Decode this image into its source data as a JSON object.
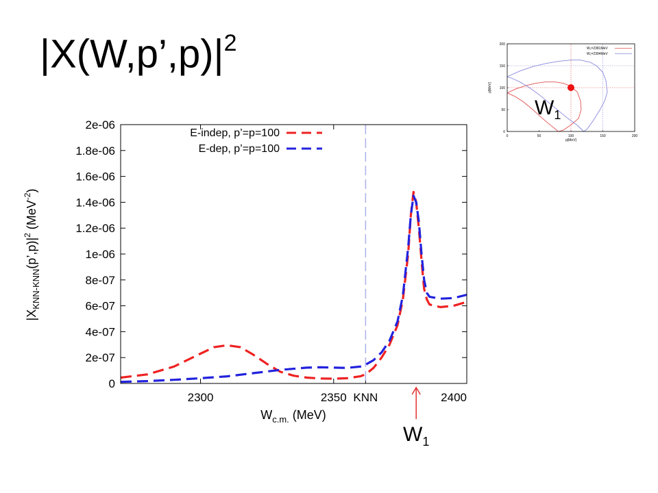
{
  "slide": {
    "title_main": "|X(W,p’,p)|",
    "title_sup": "2",
    "marker_label_main": "W",
    "marker_label_sub": "1"
  },
  "chart_data": [
    {
      "type": "line",
      "xlabel_main": "W",
      "xlabel_sub": "c.m.",
      "xlabel_tail": " (MeV)",
      "ylabel_main": "|X",
      "ylabel_sub": "KNN-KNN",
      "ylabel_tail": "(p’,p)|",
      "ylabel_sup_2": "2",
      "ylabel_unit": " (MeV",
      "ylabel_unit_sup": "-2",
      "ylabel_close": ")",
      "xlim": [
        2270,
        2400
      ],
      "ylim": [
        0,
        2e-06
      ],
      "x_ticks": [
        {
          "value": 2300,
          "label": "2300"
        },
        {
          "value": 2350,
          "label": "2350"
        },
        {
          "value": 2362,
          "label": "KNN"
        },
        {
          "value": 2400,
          "label": "2400"
        }
      ],
      "y_ticks": [
        {
          "value": 0,
          "label": "0"
        },
        {
          "value": 2e-07,
          "label": "2e-07"
        },
        {
          "value": 4e-07,
          "label": "4e-07"
        },
        {
          "value": 6e-07,
          "label": "6e-07"
        },
        {
          "value": 8e-07,
          "label": "8e-07"
        },
        {
          "value": 1e-06,
          "label": "1e-06"
        },
        {
          "value": 1.2e-06,
          "label": "1.2e-06"
        },
        {
          "value": 1.4e-06,
          "label": "1.4e-06"
        },
        {
          "value": 1.6e-06,
          "label": "1.6e-06"
        },
        {
          "value": 1.8e-06,
          "label": "1.8e-06"
        },
        {
          "value": 2e-06,
          "label": "2e-06"
        }
      ],
      "threshold_x": 2362,
      "threshold_color": "#aab0e8",
      "marker_x": 2381,
      "marker_color": "#e03030",
      "legend_position": "top-right",
      "grid": false,
      "series": [
        {
          "name": "E-indep, p’=p=100",
          "color": "#ee2222",
          "x": [
            2270,
            2280,
            2290,
            2300,
            2305,
            2310,
            2315,
            2320,
            2325,
            2330,
            2335,
            2340,
            2345,
            2350,
            2355,
            2360,
            2362,
            2365,
            2368,
            2371,
            2374,
            2376,
            2378,
            2379,
            2380,
            2381,
            2382,
            2383,
            2384,
            2385,
            2386,
            2390,
            2395,
            2400
          ],
          "y": [
            4.5e-08,
            7e-08,
            1.3e-07,
            2.3e-07,
            2.8e-07,
            2.95e-07,
            2.8e-07,
            2.2e-07,
            1.5e-07,
            9e-08,
            6e-08,
            4.5e-08,
            3.8e-08,
            3.7e-08,
            4e-08,
            5.5e-08,
            7e-08,
            1.2e-07,
            2e-07,
            3e-07,
            4.5e-07,
            6.5e-07,
            1e-06,
            1.3e-06,
            1.48e-06,
            1.4e-06,
            1.2e-06,
            9.5e-07,
            7.3e-07,
            6.5e-07,
            6.1e-07,
            5.9e-07,
            6e-07,
            6.3e-07
          ]
        },
        {
          "name": "E-dep, p’=p=100",
          "color": "#2222dd",
          "x": [
            2270,
            2280,
            2290,
            2300,
            2310,
            2320,
            2330,
            2340,
            2345,
            2350,
            2355,
            2360,
            2362,
            2365,
            2368,
            2371,
            2374,
            2376,
            2378,
            2379,
            2380,
            2381,
            2382,
            2383,
            2384,
            2385,
            2386,
            2390,
            2395,
            2400
          ],
          "y": [
            1.2e-08,
            1.8e-08,
            2.8e-08,
            4e-08,
            5.5e-08,
            8e-08,
            1.05e-07,
            1.22e-07,
            1.25e-07,
            1.22e-07,
            1.2e-07,
            1.3e-07,
            1.45e-07,
            1.8e-07,
            2.4e-07,
            3.3e-07,
            4.8e-07,
            6.8e-07,
            1.05e-06,
            1.3e-06,
            1.45e-06,
            1.4e-06,
            1.25e-06,
            1e-06,
            8e-07,
            7e-07,
            6.7e-07,
            6.55e-07,
            6.6e-07,
            6.85e-07
          ]
        }
      ]
    },
    {
      "type": "line",
      "xlabel": "p[MeV]",
      "ylabel": "p[MeV]",
      "xlim": [
        0,
        200
      ],
      "ylim": [
        0,
        200
      ],
      "x_ticks": [
        0,
        50,
        100,
        150,
        200
      ],
      "y_ticks": [
        0,
        50,
        100,
        150,
        200
      ],
      "series": [
        {
          "name": "W₁=2381MeV",
          "color": "#e05050",
          "x": [
            0,
            15,
            30,
            45,
            60,
            75,
            88,
            100,
            110,
            115,
            116,
            112,
            100,
            88,
            80,
            70,
            55,
            40,
            25,
            12,
            0
          ],
          "y": [
            88,
            98,
            105,
            110,
            113,
            113,
            110,
            103,
            90,
            70,
            50,
            30,
            15,
            3,
            0,
            12,
            30,
            50,
            68,
            80,
            88
          ]
        },
        {
          "name": "W₁=2394MeV",
          "color": "#8888dd",
          "x": [
            0,
            20,
            40,
            60,
            80,
            100,
            115,
            130,
            140,
            150,
            155,
            157,
            153,
            145,
            135,
            125,
            120,
            110,
            95,
            80,
            65,
            50,
            35,
            20,
            8,
            0
          ],
          "y": [
            125,
            138,
            148,
            155,
            160,
            163,
            163,
            158,
            150,
            135,
            115,
            90,
            70,
            48,
            25,
            5,
            0,
            14,
            30,
            48,
            66,
            84,
            100,
            113,
            121,
            125
          ]
        }
      ],
      "guides_red": {
        "x": 100,
        "y": 100
      },
      "guides_blue": {
        "x": 150,
        "y": 150
      },
      "marker_point": {
        "x": 100,
        "y": 100
      },
      "marker_label_main": "W",
      "marker_label_sub": "1"
    }
  ]
}
